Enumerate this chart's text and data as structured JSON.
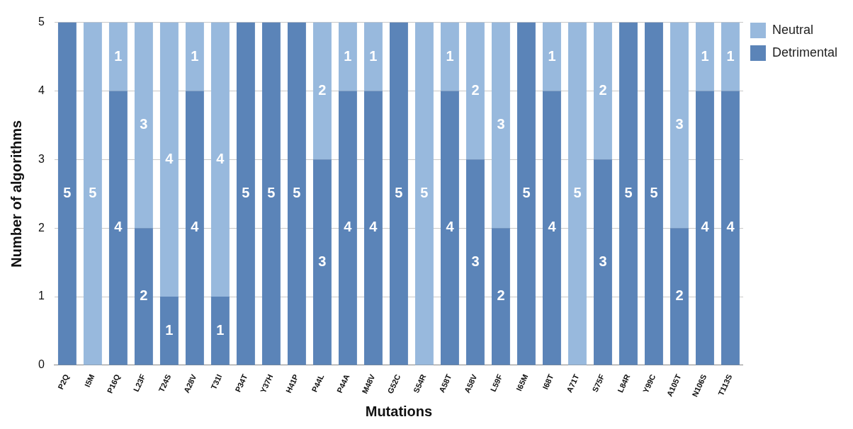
{
  "chart_data": {
    "type": "bar",
    "stacked": true,
    "xlabel": "Mutations",
    "ylabel": "Number of algorithms",
    "categories": [
      "P2Q",
      "I5M",
      "P16Q",
      "L23F",
      "T24S",
      "A28V",
      "T31I",
      "P34T",
      "Y37H",
      "H41P",
      "P44L",
      "P44A",
      "M48V",
      "G52C",
      "S54R",
      "A58T",
      "A58V",
      "L59F",
      "I65M",
      "I68T",
      "A71T",
      "S75F",
      "L84R",
      "Y99C",
      "A105T",
      "N106S",
      "T113S"
    ],
    "series": [
      {
        "name": "Detrimental",
        "color": "#5b84b8",
        "values": [
          5,
          0,
          4,
          2,
          1,
          4,
          1,
          5,
          5,
          5,
          3,
          4,
          4,
          5,
          0,
          4,
          3,
          2,
          5,
          4,
          0,
          3,
          5,
          5,
          2,
          4,
          4
        ],
        "value_labels": [
          "5",
          null,
          "4",
          "2",
          "1",
          "4",
          "1",
          "5",
          "5",
          "5",
          "3",
          "4",
          "4",
          "5",
          null,
          "4",
          "3",
          "2",
          "5",
          "4",
          null,
          "3",
          "5",
          "5",
          "2",
          "4",
          "4"
        ]
      },
      {
        "name": "Neutral",
        "color": "#98b9dd",
        "values": [
          0,
          5,
          1,
          3,
          4,
          1,
          4,
          0,
          0,
          0,
          2,
          1,
          1,
          0,
          5,
          1,
          2,
          3,
          0,
          1,
          5,
          2,
          0,
          0,
          3,
          1,
          1
        ],
        "value_labels": [
          null,
          "5",
          "1",
          "3",
          "4",
          "1",
          "4",
          null,
          null,
          null,
          "2",
          "1",
          "1",
          null,
          "5",
          "1",
          "2",
          "3",
          null,
          "1",
          "5",
          "2",
          null,
          null,
          "3",
          "1",
          "1"
        ]
      }
    ],
    "ylim": [
      0,
      5
    ],
    "yticks": [
      0,
      1,
      2,
      3,
      4,
      5
    ],
    "grid": "y",
    "legend": "right"
  }
}
